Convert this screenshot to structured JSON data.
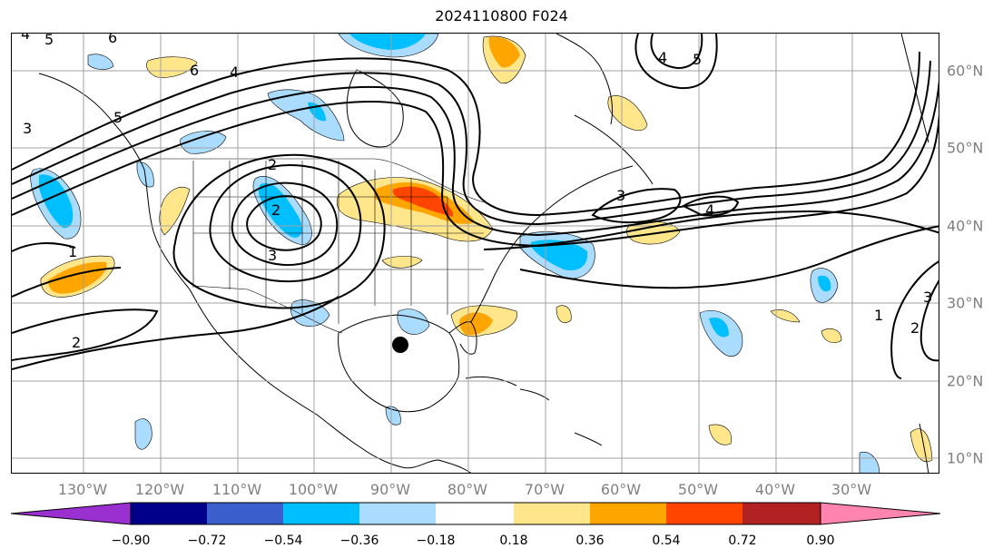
{
  "title": "2024110800 F024",
  "lon_labels": [
    "130°W",
    "120°W",
    "110°W",
    "100°W",
    "90°W",
    "80°W",
    "70°W",
    "60°W",
    "50°W",
    "40°W",
    "30°W"
  ],
  "lat_labels": [
    "60°N",
    "50°N",
    "40°N",
    "30°N",
    "20°N",
    "10°N"
  ],
  "colorbar": {
    "ticks": [
      "−0.90",
      "−0.72",
      "−0.54",
      "−0.36",
      "−0.18",
      "0.18",
      "0.36",
      "0.54",
      "0.72",
      "0.90"
    ],
    "colors": [
      "#9b30d0",
      "#00008b",
      "#3a5fcd",
      "#00bfff",
      "#aadcff",
      "#ffffff",
      "#ffe68a",
      "#ffa500",
      "#ff4500",
      "#b22222",
      "#ff85b0"
    ]
  },
  "contour_labels": [
    "5",
    "6",
    "4",
    "5",
    "2",
    "2",
    "3",
    "3",
    "1",
    "2",
    "3",
    "4",
    "1",
    "3",
    "2",
    "6",
    "4",
    "5",
    "4"
  ],
  "storm_marker": "black-dot",
  "colors": {
    "grid": "#a0a0a0",
    "coast": "#000000",
    "contour": "#000000",
    "pos_light": "#ffe68a",
    "pos_mid": "#ffa500",
    "pos_strong": "#ff4500",
    "neg_light": "#aadcff",
    "neg_mid": "#00bfff"
  }
}
